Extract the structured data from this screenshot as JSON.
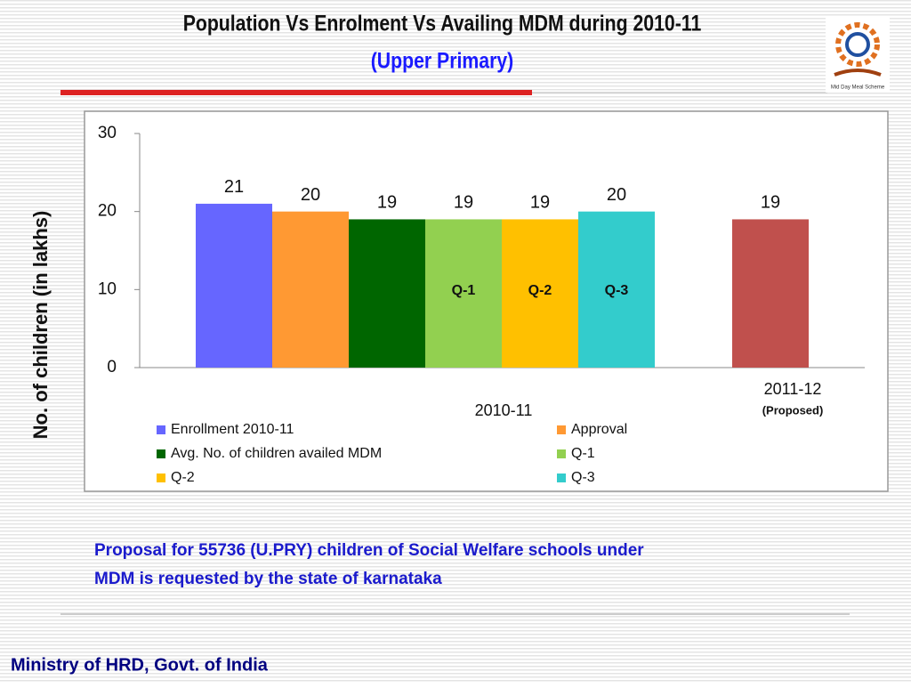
{
  "chart_data": {
    "type": "bar",
    "title": "Population Vs Enrolment Vs Availing MDM during  2010-11",
    "subtitle": "(Upper Primary)",
    "y_label": "No. of children (in lakhs)",
    "categories": [
      "2010-11",
      "2011-12"
    ],
    "category_note": "(Proposed)",
    "series": [
      {
        "name": "Enrollment 2010-11",
        "color": "#6666ff",
        "values": [
          21,
          null
        ]
      },
      {
        "name": "Approval",
        "color": "#ff9933",
        "values": [
          20,
          null
        ]
      },
      {
        "name": "Avg. No. of children availed MDM",
        "color": "#006600",
        "values": [
          19,
          null
        ]
      },
      {
        "name": "Q-1",
        "color": "#92d050",
        "values": [
          19,
          null
        ]
      },
      {
        "name": "Q-2",
        "color": "#ffc000",
        "values": [
          19,
          null
        ]
      },
      {
        "name": "Q-3",
        "color": "#33cccc",
        "values": [
          20,
          null
        ]
      },
      {
        "color": "#c0504d",
        "values": [
          null,
          19
        ]
      }
    ],
    "ylim": [
      0,
      30
    ],
    "yticks": [
      0,
      10,
      20,
      30
    ],
    "grid": false
  },
  "note": [
    "Proposal  for  55736  (U.PRY)  children of Social Welfare schools under",
    "MDM is requested by the state of karnataka"
  ],
  "footer": "Ministry of HRD, Govt. of India",
  "logo_caption": "Mid Day Meal Scheme"
}
